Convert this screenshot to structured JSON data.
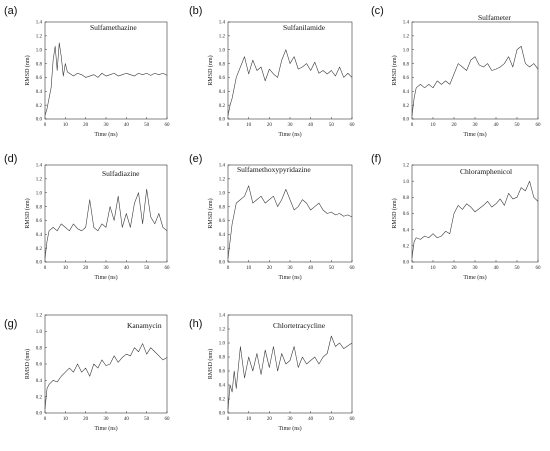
{
  "colors": {
    "line": "#3a3a3a",
    "axis": "#333333",
    "background": "#ffffff"
  },
  "chart_data": [
    {
      "type": "line",
      "letter": "(a)",
      "title": "Sulfamethazine",
      "xlabel": "Time (ns)",
      "ylabel": "RMSD (nm)",
      "xlim": [
        0,
        60
      ],
      "ylim": [
        0,
        1.4
      ],
      "xticks": [
        "0",
        "10",
        "20",
        "30",
        "40",
        "50",
        "60"
      ],
      "yticks": [
        "0.0",
        "0.2",
        "0.4",
        "0.6",
        "0.8",
        "1.0",
        "1.2",
        "1.4"
      ],
      "x": [
        0,
        1,
        2,
        3,
        4,
        5,
        6,
        7,
        8,
        9,
        10,
        11,
        12,
        14,
        16,
        18,
        20,
        22,
        24,
        26,
        28,
        30,
        32,
        34,
        36,
        38,
        40,
        42,
        44,
        46,
        48,
        50,
        52,
        54,
        56,
        58,
        60
      ],
      "y": [
        0.05,
        0.15,
        0.3,
        0.45,
        0.85,
        1.05,
        0.7,
        1.1,
        0.9,
        0.62,
        0.8,
        0.68,
        0.66,
        0.62,
        0.66,
        0.64,
        0.6,
        0.62,
        0.64,
        0.6,
        0.66,
        0.62,
        0.64,
        0.66,
        0.62,
        0.64,
        0.66,
        0.64,
        0.62,
        0.66,
        0.64,
        0.66,
        0.63,
        0.66,
        0.64,
        0.66,
        0.63
      ]
    },
    {
      "type": "line",
      "letter": "(b)",
      "title": "Sulfanilamide",
      "xlabel": "Time (ns)",
      "ylabel": "RMSD (nm)",
      "xlim": [
        0,
        60
      ],
      "ylim": [
        0,
        1.4
      ],
      "xticks": [
        "0",
        "10",
        "20",
        "30",
        "40",
        "50",
        "60"
      ],
      "yticks": [
        "0.0",
        "0.2",
        "0.4",
        "0.6",
        "0.8",
        "1.0",
        "1.2",
        "1.4"
      ],
      "x": [
        0,
        1,
        2,
        3,
        4,
        6,
        8,
        10,
        12,
        14,
        16,
        18,
        20,
        22,
        24,
        26,
        28,
        30,
        32,
        34,
        36,
        38,
        40,
        42,
        44,
        46,
        48,
        50,
        52,
        54,
        56,
        58,
        60
      ],
      "y": [
        0.05,
        0.2,
        0.3,
        0.45,
        0.6,
        0.75,
        0.9,
        0.65,
        0.85,
        0.7,
        0.75,
        0.55,
        0.72,
        0.65,
        0.6,
        0.85,
        1.0,
        0.8,
        0.9,
        0.72,
        0.75,
        0.8,
        0.7,
        0.82,
        0.66,
        0.7,
        0.65,
        0.7,
        0.62,
        0.75,
        0.6,
        0.66,
        0.6
      ]
    },
    {
      "type": "line",
      "letter": "(c)",
      "title": "Sulfameter",
      "xlabel": "Time (ns)",
      "ylabel": "RMSD (nm)",
      "xlim": [
        0,
        60
      ],
      "ylim": [
        0,
        1.4
      ],
      "xticks": [
        "0",
        "10",
        "20",
        "30",
        "40",
        "50",
        "60"
      ],
      "yticks": [
        "0.0",
        "0.2",
        "0.4",
        "0.6",
        "0.8",
        "1.0",
        "1.2",
        "1.4"
      ],
      "x": [
        0,
        1,
        2,
        4,
        6,
        8,
        10,
        12,
        14,
        16,
        18,
        20,
        22,
        24,
        26,
        28,
        30,
        32,
        34,
        36,
        38,
        40,
        42,
        44,
        46,
        48,
        50,
        52,
        54,
        56,
        58,
        60
      ],
      "y": [
        0.05,
        0.3,
        0.45,
        0.5,
        0.45,
        0.5,
        0.45,
        0.55,
        0.5,
        0.55,
        0.5,
        0.65,
        0.8,
        0.75,
        0.7,
        0.85,
        0.9,
        0.78,
        0.75,
        0.8,
        0.7,
        0.72,
        0.75,
        0.8,
        0.9,
        0.75,
        1.0,
        1.05,
        0.8,
        0.75,
        0.8,
        0.72
      ]
    },
    {
      "type": "line",
      "letter": "(d)",
      "title": "Sulfadiazine",
      "xlabel": "Time (ns)",
      "ylabel": "RMSD (nm)",
      "xlim": [
        0,
        60
      ],
      "ylim": [
        0,
        1.4
      ],
      "xticks": [
        "0",
        "10",
        "20",
        "30",
        "40",
        "50",
        "60"
      ],
      "yticks": [
        "0.0",
        "0.2",
        "0.4",
        "0.6",
        "0.8",
        "1.0",
        "1.2",
        "1.4"
      ],
      "x": [
        0,
        1,
        2,
        4,
        6,
        8,
        10,
        12,
        14,
        16,
        18,
        20,
        22,
        24,
        26,
        28,
        30,
        32,
        34,
        36,
        38,
        40,
        42,
        44,
        46,
        48,
        50,
        52,
        54,
        56,
        58,
        60
      ],
      "y": [
        0.05,
        0.3,
        0.45,
        0.5,
        0.45,
        0.55,
        0.5,
        0.45,
        0.55,
        0.48,
        0.45,
        0.5,
        0.9,
        0.5,
        0.45,
        0.55,
        0.5,
        0.8,
        0.6,
        0.95,
        0.5,
        0.7,
        0.5,
        0.85,
        1.0,
        0.55,
        1.05,
        0.65,
        0.55,
        0.7,
        0.5,
        0.45
      ]
    },
    {
      "type": "line",
      "letter": "(e)",
      "title": "Sulfamethoxypyridazine",
      "xlabel": "Time (ns)",
      "ylabel": "RMSD (nm)",
      "xlim": [
        0,
        60
      ],
      "ylim": [
        0,
        1.4
      ],
      "xticks": [
        "0",
        "10",
        "20",
        "30",
        "40",
        "50",
        "60"
      ],
      "yticks": [
        "0.0",
        "0.2",
        "0.4",
        "0.6",
        "0.8",
        "1.0",
        "1.2",
        "1.4"
      ],
      "x": [
        0,
        1,
        2,
        3,
        4,
        6,
        8,
        10,
        12,
        14,
        16,
        18,
        20,
        22,
        24,
        26,
        28,
        30,
        32,
        34,
        36,
        38,
        40,
        42,
        44,
        46,
        48,
        50,
        52,
        54,
        56,
        58,
        60
      ],
      "y": [
        0.05,
        0.3,
        0.55,
        0.7,
        0.85,
        0.9,
        0.95,
        1.1,
        0.85,
        0.9,
        0.95,
        0.85,
        0.9,
        0.95,
        0.8,
        0.9,
        1.05,
        0.9,
        0.75,
        0.8,
        0.9,
        0.85,
        0.75,
        0.8,
        0.85,
        0.75,
        0.7,
        0.72,
        0.68,
        0.7,
        0.66,
        0.68,
        0.65
      ]
    },
    {
      "type": "line",
      "letter": "(f)",
      "title": "Chloramphenicol",
      "xlabel": "Time (ns)",
      "ylabel": "RMSD (nm)",
      "xlim": [
        0,
        60
      ],
      "ylim": [
        0,
        1.2
      ],
      "xticks": [
        "0",
        "10",
        "20",
        "30",
        "40",
        "50",
        "60"
      ],
      "yticks": [
        "0.0",
        "0.2",
        "0.4",
        "0.6",
        "0.8",
        "1.0",
        "1.2"
      ],
      "x": [
        0,
        1,
        2,
        4,
        6,
        8,
        10,
        12,
        14,
        16,
        18,
        20,
        22,
        24,
        26,
        28,
        30,
        32,
        34,
        36,
        38,
        40,
        42,
        44,
        46,
        48,
        50,
        52,
        54,
        56,
        58,
        60
      ],
      "y": [
        0.05,
        0.25,
        0.3,
        0.28,
        0.32,
        0.3,
        0.35,
        0.3,
        0.32,
        0.38,
        0.35,
        0.6,
        0.7,
        0.65,
        0.72,
        0.68,
        0.62,
        0.66,
        0.7,
        0.75,
        0.68,
        0.72,
        0.78,
        0.7,
        0.85,
        0.78,
        0.8,
        0.92,
        0.88,
        1.0,
        0.8,
        0.75
      ]
    },
    {
      "type": "line",
      "letter": "(g)",
      "title": "Kanamycin",
      "xlabel": "Time (ns)",
      "ylabel": "RMSD (nm)",
      "xlim": [
        0,
        60
      ],
      "ylim": [
        0,
        1.2
      ],
      "xticks": [
        "0",
        "10",
        "20",
        "30",
        "40",
        "50",
        "60"
      ],
      "yticks": [
        "0.0",
        "0.2",
        "0.4",
        "0.6",
        "0.8",
        "1.0",
        "1.2"
      ],
      "x": [
        0,
        1,
        2,
        4,
        6,
        8,
        10,
        12,
        14,
        16,
        18,
        20,
        22,
        24,
        26,
        28,
        30,
        32,
        34,
        36,
        38,
        40,
        42,
        44,
        46,
        48,
        50,
        52,
        54,
        56,
        58,
        60
      ],
      "y": [
        0.05,
        0.3,
        0.35,
        0.4,
        0.38,
        0.45,
        0.5,
        0.55,
        0.5,
        0.6,
        0.5,
        0.55,
        0.45,
        0.6,
        0.55,
        0.65,
        0.58,
        0.6,
        0.7,
        0.62,
        0.68,
        0.72,
        0.7,
        0.8,
        0.75,
        0.85,
        0.72,
        0.8,
        0.75,
        0.7,
        0.65,
        0.68
      ]
    },
    {
      "type": "line",
      "letter": "(h)",
      "title": "Chlortetracycline",
      "xlabel": "Time (ns)",
      "ylabel": "RMSD (nm)",
      "xlim": [
        0,
        60
      ],
      "ylim": [
        0,
        1.4
      ],
      "xticks": [
        "0",
        "10",
        "20",
        "30",
        "40",
        "50",
        "60"
      ],
      "yticks": [
        "0.0",
        "0.2",
        "0.4",
        "0.6",
        "0.8",
        "1.0",
        "1.2",
        "1.4"
      ],
      "x": [
        0,
        1,
        2,
        3,
        4,
        6,
        8,
        10,
        12,
        14,
        16,
        18,
        20,
        22,
        24,
        26,
        28,
        30,
        32,
        34,
        36,
        38,
        40,
        42,
        44,
        46,
        48,
        50,
        52,
        54,
        56,
        58,
        60
      ],
      "y": [
        0.05,
        0.4,
        0.3,
        0.6,
        0.35,
        0.95,
        0.5,
        0.8,
        0.6,
        0.85,
        0.55,
        0.9,
        0.65,
        0.95,
        0.6,
        0.85,
        0.7,
        0.75,
        0.95,
        0.65,
        0.8,
        0.7,
        0.75,
        0.8,
        0.7,
        0.8,
        0.85,
        1.1,
        0.95,
        1.0,
        0.92,
        0.96,
        1.0
      ]
    }
  ]
}
